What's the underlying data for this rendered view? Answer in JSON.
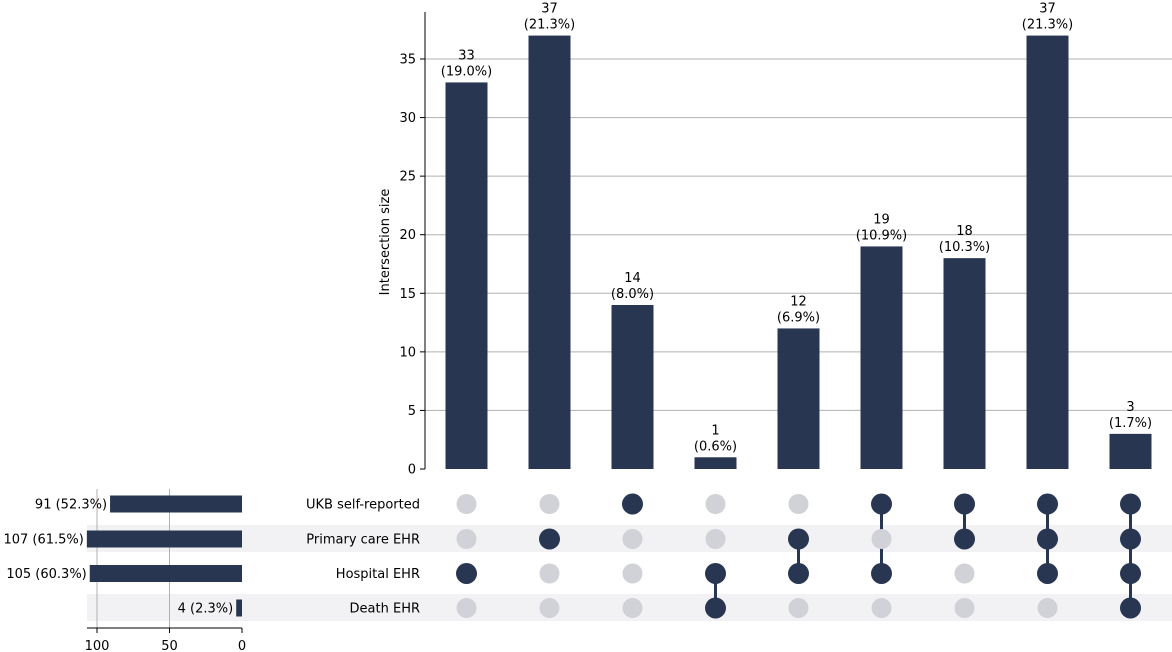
{
  "chart_data": {
    "type": "upset",
    "title": "",
    "ylabel": "Intersection size",
    "ylim": [
      0,
      38
    ],
    "yticks": [
      0,
      5,
      10,
      15,
      20,
      25,
      30,
      35
    ],
    "bar_color": "#283651",
    "inactive_dot_color": "#d0d2d8",
    "stripe_color": "#f2f2f5",
    "sets": [
      {
        "name": "UKB self-reported",
        "size": 91,
        "size_label": "91 (52.3%)"
      },
      {
        "name": "Primary care EHR",
        "size": 107,
        "size_label": "107 (61.5%)"
      },
      {
        "name": "Hospital EHR",
        "size": 105,
        "size_label": "105 (60.3%)"
      },
      {
        "name": "Death EHR",
        "size": 4,
        "size_label": "4 (2.3%)"
      }
    ],
    "set_size_ticks": [
      100,
      50,
      0
    ],
    "set_size_max": 108,
    "intersections": [
      {
        "members": [
          false,
          false,
          true,
          false
        ],
        "value": 33,
        "label_value": "33",
        "label_pct": "(19.0%)"
      },
      {
        "members": [
          false,
          true,
          false,
          false
        ],
        "value": 37,
        "label_value": "37",
        "label_pct": "(21.3%)"
      },
      {
        "members": [
          true,
          false,
          false,
          false
        ],
        "value": 14,
        "label_value": "14",
        "label_pct": "(8.0%)"
      },
      {
        "members": [
          false,
          false,
          true,
          true
        ],
        "value": 1,
        "label_value": "1",
        "label_pct": "(0.6%)"
      },
      {
        "members": [
          false,
          true,
          true,
          false
        ],
        "value": 12,
        "label_value": "12",
        "label_pct": "(6.9%)"
      },
      {
        "members": [
          true,
          false,
          true,
          false
        ],
        "value": 19,
        "label_value": "19",
        "label_pct": "(10.9%)"
      },
      {
        "members": [
          true,
          true,
          false,
          false
        ],
        "value": 18,
        "label_value": "18",
        "label_pct": "(10.3%)"
      },
      {
        "members": [
          true,
          true,
          true,
          false
        ],
        "value": 37,
        "label_value": "37",
        "label_pct": "(21.3%)"
      },
      {
        "members": [
          true,
          true,
          true,
          true
        ],
        "value": 3,
        "label_value": "3",
        "label_pct": "(1.7%)"
      }
    ]
  }
}
